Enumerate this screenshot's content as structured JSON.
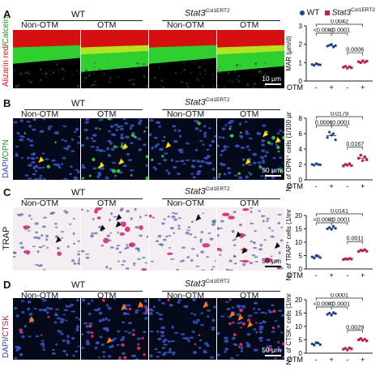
{
  "legend": {
    "wt": "WT",
    "stat3": "Stat3",
    "stat3_sup": "Col1ERT2"
  },
  "colors": {
    "wt": "#1f3f8f",
    "stat3": "#c21a56"
  },
  "panels": [
    {
      "letter": "A",
      "group1": "WT",
      "group2": "Stat3",
      "group2_sup": "Col1ERT2",
      "sub": [
        "Non-OTM",
        "OTM",
        "Non-OTM",
        "OTM"
      ],
      "stain_left": "Alizarin red",
      "stain_right": "Calcein",
      "scale": "10 μm"
    },
    {
      "letter": "B",
      "group1": "WT",
      "group2": "Stat3",
      "group2_sup": "Col1ERT2",
      "sub": [
        "Non-OTM",
        "OTM",
        "Non-OTM",
        "OTM"
      ],
      "stain_left": "DAPI",
      "stain_right": "OPN",
      "scale": "50 μm"
    },
    {
      "letter": "C",
      "group1": "WT",
      "group2": "Stat3",
      "group2_sup": "Col1ERT2",
      "sub": [
        "Non-OTM",
        "OTM",
        "Non-OTM",
        "OTM"
      ],
      "stain_single": "TRAP",
      "scale": "50 μm"
    },
    {
      "letter": "D",
      "group1": "WT",
      "group2": "Stat3",
      "group2_sup": "Col1ERT2",
      "sub": [
        "Non-OTM",
        "OTM",
        "Non-OTM",
        "OTM"
      ],
      "stain_left": "DAPI",
      "stain_right": "CTSK",
      "scale": "50 μm"
    }
  ],
  "chart_data": [
    {
      "type": "scatter",
      "ylabel": "MAR (μm/d)",
      "ylim": [
        0,
        3
      ],
      "yticks": [
        0,
        1,
        2,
        3
      ],
      "xlabel": "OTM",
      "x_tick_labels": [
        "-",
        "+",
        "-",
        "+"
      ],
      "series": [
        {
          "values": [
            [
              0.9,
              0.85,
              0.95,
              0.9,
              0.88
            ],
            [
              1.9,
              1.95,
              2.0,
              1.85,
              1.92
            ],
            [
              0.75,
              0.8,
              0.7,
              0.78,
              0.72
            ],
            [
              1.05,
              1.0,
              1.1,
              1.02,
              1.08
            ]
          ]
        }
      ],
      "pvalues": [
        "0.0042",
        "<0.0001",
        "<0.0001",
        "0.0006"
      ]
    },
    {
      "type": "scatter",
      "ylabel": "No. of OPN⁺ cells (1/100 μm)",
      "ylim": [
        0,
        8
      ],
      "yticks": [
        0,
        2,
        4,
        6,
        8
      ],
      "xlabel": "OTM",
      "x_tick_labels": [
        "-",
        "+",
        "-",
        "+"
      ],
      "series": [
        {
          "values": [
            [
              2.0,
              1.9,
              2.1,
              2.0,
              1.95
            ],
            [
              5.5,
              6.2,
              5.8,
              6.0,
              5.2
            ],
            [
              1.8,
              2.0,
              1.9,
              2.1,
              1.85
            ],
            [
              2.8,
              3.2,
              2.5,
              3.0,
              2.6
            ]
          ]
        }
      ],
      "pvalues": [
        "0.0179",
        "0.0001",
        "<0.0001",
        "0.0167"
      ]
    },
    {
      "type": "scatter",
      "ylabel": "No. of TRAP⁺ cells (1/mm)",
      "ylim": [
        0,
        20
      ],
      "yticks": [
        0,
        5,
        10,
        15,
        20
      ],
      "xlabel": "OTM",
      "x_tick_labels": [
        "-",
        "+",
        "-",
        "+"
      ],
      "series": [
        {
          "values": [
            [
              4.5,
              4.0,
              5.0,
              4.8,
              4.2
            ],
            [
              15.0,
              15.5,
              14.8,
              16.0,
              15.2
            ],
            [
              3.5,
              3.8,
              3.6,
              3.9,
              3.7
            ],
            [
              6.5,
              7.0,
              6.8,
              7.2,
              6.6
            ]
          ]
        }
      ],
      "pvalues": [
        "0.0141",
        "<0.0001",
        "<0.0001",
        "0.0011"
      ]
    },
    {
      "type": "scatter",
      "ylabel": "No. of CTSK⁺ cells (1/mm)",
      "ylim": [
        0,
        20
      ],
      "yticks": [
        0,
        5,
        10,
        15,
        20
      ],
      "xlabel": "OTM",
      "x_tick_labels": [
        "-",
        "+",
        "-",
        "+"
      ],
      "series": [
        {
          "values": [
            [
              3.5,
              3.0,
              4.0,
              3.8,
              3.2
            ],
            [
              14.5,
              15.0,
              14.2,
              15.2,
              14.8
            ],
            [
              1.5,
              1.8,
              1.2,
              2.0,
              1.6
            ],
            [
              5.0,
              5.5,
              4.8,
              5.2,
              4.6
            ]
          ]
        }
      ],
      "pvalues": [
        "0.0001",
        "<0.0001",
        "<0.0001",
        "0.0029"
      ]
    }
  ]
}
